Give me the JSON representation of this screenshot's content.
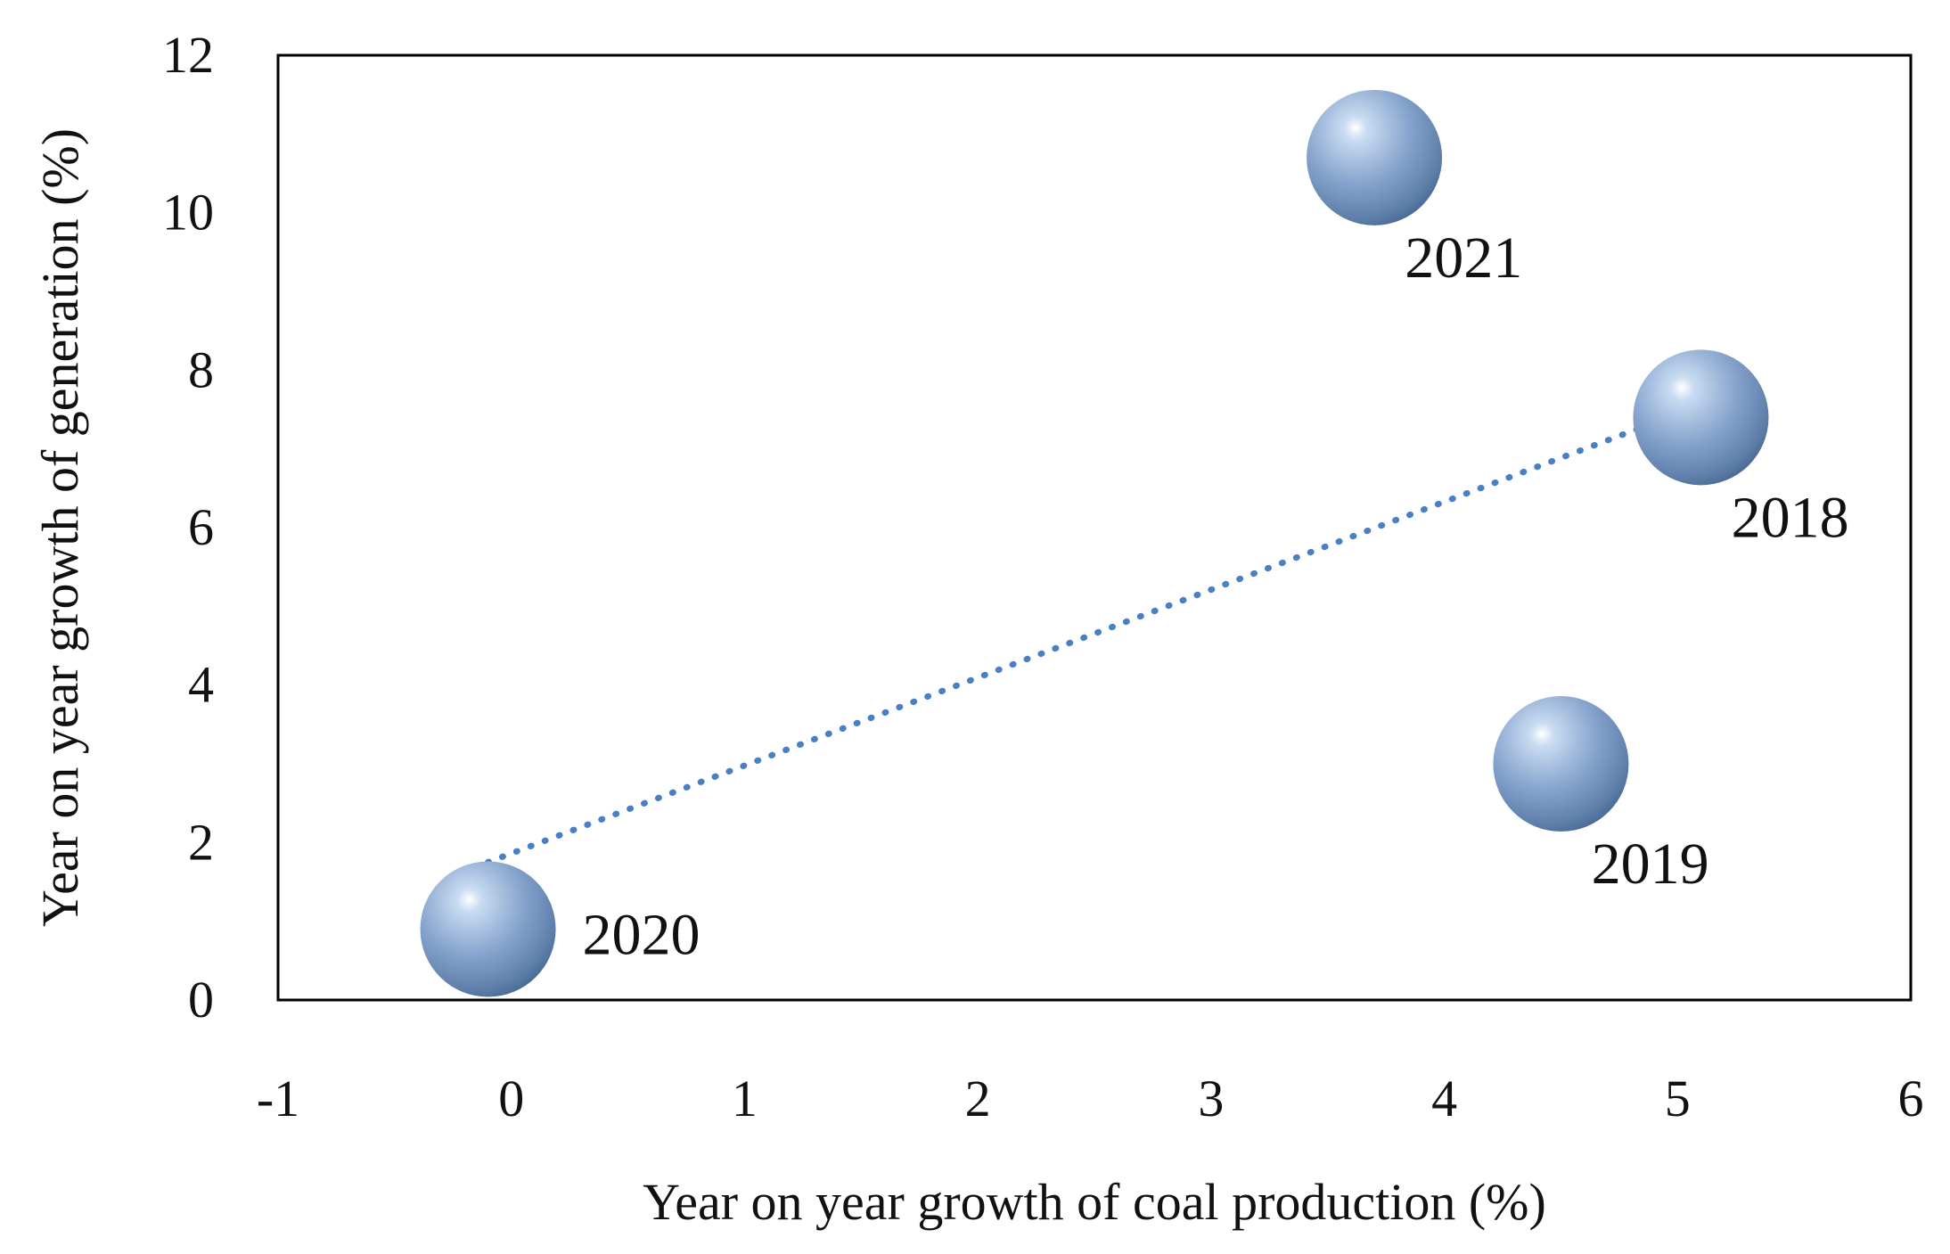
{
  "chart_data": {
    "type": "scatter",
    "title": "",
    "xlabel": "Year on year growth of coal production (%)",
    "ylabel": "Year on year growth of  generation (%)",
    "xlim": [
      -1,
      6
    ],
    "ylim": [
      0,
      12
    ],
    "xticks": [
      -1,
      0,
      1,
      2,
      3,
      4,
      5,
      6
    ],
    "yticks": [
      0,
      2,
      4,
      6,
      8,
      10,
      12
    ],
    "grid": false,
    "legend": "none",
    "bubble_color": "#7E9CC5",
    "trendline_color": "#4A7FC1",
    "points": [
      {
        "label": "2020",
        "x": -0.1,
        "y": 0.9
      },
      {
        "label": "2021",
        "x": 3.7,
        "y": 10.7
      },
      {
        "label": "2018",
        "x": 5.1,
        "y": 7.4
      },
      {
        "label": "2019",
        "x": 4.5,
        "y": 3.0
      }
    ],
    "trendline": {
      "style": "dotted",
      "from": {
        "x": -0.1,
        "y": 1.75
      },
      "to": {
        "x": 5.05,
        "y": 7.5
      }
    }
  }
}
